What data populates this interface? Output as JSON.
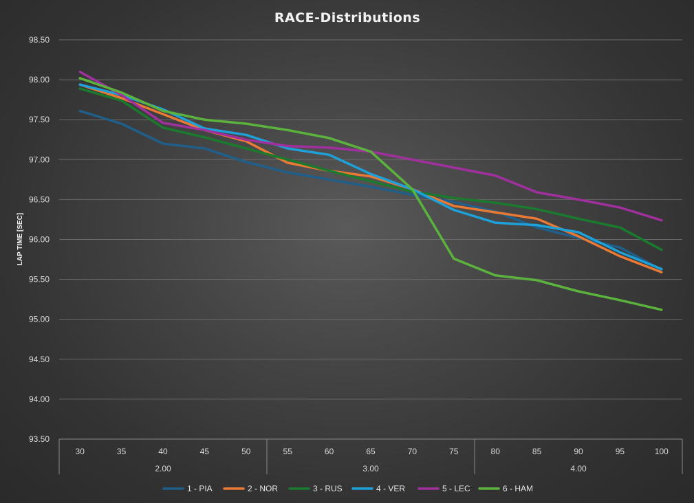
{
  "chart_data": {
    "type": "line",
    "title": "RACE-Distributions",
    "ylabel": "LAP TIME [SEC]",
    "xlabel": "",
    "ylim": [
      93.5,
      98.5
    ],
    "y_ticks": [
      "93.50",
      "94.00",
      "94.50",
      "95.00",
      "95.50",
      "96.00",
      "96.50",
      "97.00",
      "97.50",
      "98.00",
      "98.50"
    ],
    "categories": [
      "30",
      "35",
      "40",
      "45",
      "50",
      "55",
      "60",
      "65",
      "70",
      "75",
      "80",
      "85",
      "90",
      "95",
      "100"
    ],
    "groups": [
      {
        "label": "2.00",
        "count": 5
      },
      {
        "label": "3.00",
        "count": 5
      },
      {
        "label": "4.00",
        "count": 5
      }
    ],
    "grid": true,
    "legend_position": "bottom",
    "series": [
      {
        "name": "1 - PIA",
        "color": "#1f5f8a",
        "values": [
          97.61,
          97.45,
          97.2,
          97.14,
          96.97,
          96.84,
          96.75,
          96.66,
          96.56,
          96.47,
          96.35,
          96.15,
          96.02,
          95.9,
          95.62
        ]
      },
      {
        "name": "2 - NOR",
        "color": "#e87a35",
        "values": [
          97.94,
          97.77,
          97.57,
          97.37,
          97.23,
          96.96,
          96.86,
          96.79,
          96.63,
          96.42,
          96.34,
          96.26,
          96.04,
          95.79,
          95.59
        ]
      },
      {
        "name": "3 - RUS",
        "color": "#1a7a2e",
        "values": [
          97.89,
          97.74,
          97.4,
          97.28,
          97.14,
          97.0,
          96.86,
          96.73,
          96.6,
          96.52,
          96.46,
          96.38,
          96.26,
          96.15,
          95.87
        ]
      },
      {
        "name": "4 - VER",
        "color": "#1ea0d8",
        "values": [
          97.94,
          97.81,
          97.63,
          97.39,
          97.31,
          97.14,
          97.06,
          96.82,
          96.63,
          96.37,
          96.21,
          96.18,
          96.09,
          95.84,
          95.63
        ]
      },
      {
        "name": "5 - LEC",
        "color": "#a0309e",
        "values": [
          98.1,
          97.81,
          97.46,
          97.37,
          97.25,
          97.17,
          97.15,
          97.1,
          97.0,
          96.9,
          96.8,
          96.59,
          96.5,
          96.4,
          96.24
        ]
      },
      {
        "name": "6 - HAM",
        "color": "#5bb33d",
        "values": [
          98.02,
          97.84,
          97.61,
          97.5,
          97.45,
          97.37,
          97.27,
          97.1,
          96.63,
          95.76,
          95.55,
          95.49,
          95.35,
          95.24,
          95.12
        ]
      }
    ]
  }
}
